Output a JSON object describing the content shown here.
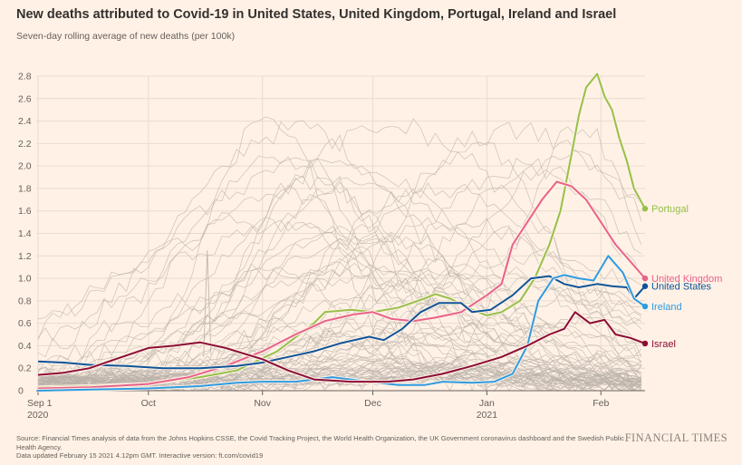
{
  "title": "New deaths attributed to Covid-19 in United States, United Kingdom, Portugal, Ireland and Israel",
  "subtitle": "Seven-day rolling average of new deaths (per 100k)",
  "footer": {
    "source": "Source: Financial Times analysis of data from the Johns Hopkins CSSE, the Covid Tracking Project, the World Health Organization, the UK Government coronavirus dashboard and the Swedish Public Health Agency.",
    "updated": "Data updated February 15 2021 4.12pm GMT. Interactive version: ft.com/covid19"
  },
  "brand": "FINANCIAL TIMES",
  "colors": {
    "background": "#fff1e5",
    "grid": "#e9dccf",
    "background_series": "#b9b1aa",
    "portugal": "#96c04a",
    "united_kingdom": "#e8628a",
    "united_states": "#0f5499",
    "ireland": "#2e9be0",
    "israel": "#8b0c35"
  },
  "chart_data": {
    "type": "line",
    "x_unit": "date",
    "xlim": [
      "2020-09-01",
      "2021-02-13"
    ],
    "ylim": [
      0,
      2.8
    ],
    "grid": true,
    "y_ticks": [
      {
        "value": 0,
        "label": "0"
      },
      {
        "value": 0.2,
        "label": "0.2"
      },
      {
        "value": 0.4,
        "label": "0.4"
      },
      {
        "value": 0.6,
        "label": "0.6"
      },
      {
        "value": 0.8,
        "label": "0.8"
      },
      {
        "value": 1.0,
        "label": "1.0"
      },
      {
        "value": 1.2,
        "label": "1.2"
      },
      {
        "value": 1.4,
        "label": "1.4"
      },
      {
        "value": 1.6,
        "label": "1.6"
      },
      {
        "value": 1.8,
        "label": "1.8"
      },
      {
        "value": 2.0,
        "label": "2.0"
      },
      {
        "value": 2.2,
        "label": "2.2"
      },
      {
        "value": 2.4,
        "label": "2.4"
      },
      {
        "value": 2.6,
        "label": "2.6"
      },
      {
        "value": 2.8,
        "label": "2.8"
      }
    ],
    "x_ticks": [
      {
        "date": "2020-09-01",
        "label": "Sep 1",
        "sublabel": "2020"
      },
      {
        "date": "2020-10-01",
        "label": "Oct",
        "sublabel": ""
      },
      {
        "date": "2020-11-01",
        "label": "Nov",
        "sublabel": ""
      },
      {
        "date": "2020-12-01",
        "label": "Dec",
        "sublabel": ""
      },
      {
        "date": "2021-01-01",
        "label": "Jan",
        "sublabel": "2021"
      },
      {
        "date": "2021-02-01",
        "label": "Feb",
        "sublabel": ""
      }
    ],
    "series": [
      {
        "name": "Portugal",
        "color_key": "portugal",
        "points": [
          [
            "2020-09-01",
            0.03
          ],
          [
            "2020-09-15",
            0.04
          ],
          [
            "2020-10-01",
            0.06
          ],
          [
            "2020-10-15",
            0.12
          ],
          [
            "2020-10-25",
            0.18
          ],
          [
            "2020-11-05",
            0.35
          ],
          [
            "2020-11-15",
            0.6
          ],
          [
            "2020-11-18",
            0.7
          ],
          [
            "2020-11-25",
            0.72
          ],
          [
            "2020-12-01",
            0.7
          ],
          [
            "2020-12-08",
            0.74
          ],
          [
            "2020-12-15",
            0.82
          ],
          [
            "2020-12-18",
            0.86
          ],
          [
            "2020-12-22",
            0.82
          ],
          [
            "2020-12-28",
            0.72
          ],
          [
            "2021-01-01",
            0.67
          ],
          [
            "2021-01-05",
            0.7
          ],
          [
            "2021-01-10",
            0.8
          ],
          [
            "2021-01-14",
            1.0
          ],
          [
            "2021-01-18",
            1.3
          ],
          [
            "2021-01-21",
            1.6
          ],
          [
            "2021-01-24",
            2.1
          ],
          [
            "2021-01-26",
            2.45
          ],
          [
            "2021-01-28",
            2.7
          ],
          [
            "2021-01-31",
            2.82
          ],
          [
            "2021-02-02",
            2.62
          ],
          [
            "2021-02-04",
            2.5
          ],
          [
            "2021-02-06",
            2.25
          ],
          [
            "2021-02-08",
            2.05
          ],
          [
            "2021-02-10",
            1.8
          ],
          [
            "2021-02-13",
            1.62
          ]
        ]
      },
      {
        "name": "United Kingdom",
        "color_key": "united_kingdom",
        "points": [
          [
            "2020-09-01",
            0.02
          ],
          [
            "2020-09-15",
            0.03
          ],
          [
            "2020-10-01",
            0.06
          ],
          [
            "2020-10-12",
            0.12
          ],
          [
            "2020-10-22",
            0.22
          ],
          [
            "2020-11-01",
            0.35
          ],
          [
            "2020-11-10",
            0.5
          ],
          [
            "2020-11-18",
            0.62
          ],
          [
            "2020-11-26",
            0.68
          ],
          [
            "2020-12-01",
            0.7
          ],
          [
            "2020-12-06",
            0.64
          ],
          [
            "2020-12-12",
            0.62
          ],
          [
            "2020-12-18",
            0.65
          ],
          [
            "2020-12-25",
            0.7
          ],
          [
            "2021-01-01",
            0.85
          ],
          [
            "2021-01-05",
            0.95
          ],
          [
            "2021-01-08",
            1.3
          ],
          [
            "2021-01-12",
            1.5
          ],
          [
            "2021-01-16",
            1.7
          ],
          [
            "2021-01-20",
            1.86
          ],
          [
            "2021-01-24",
            1.82
          ],
          [
            "2021-01-28",
            1.7
          ],
          [
            "2021-02-01",
            1.5
          ],
          [
            "2021-02-05",
            1.3
          ],
          [
            "2021-02-09",
            1.15
          ],
          [
            "2021-02-13",
            1.0
          ]
        ]
      },
      {
        "name": "United States",
        "color_key": "united_states",
        "points": [
          [
            "2020-09-01",
            0.26
          ],
          [
            "2020-09-08",
            0.25
          ],
          [
            "2020-09-15",
            0.23
          ],
          [
            "2020-09-25",
            0.22
          ],
          [
            "2020-10-05",
            0.2
          ],
          [
            "2020-10-15",
            0.2
          ],
          [
            "2020-10-25",
            0.22
          ],
          [
            "2020-11-01",
            0.25
          ],
          [
            "2020-11-08",
            0.3
          ],
          [
            "2020-11-15",
            0.35
          ],
          [
            "2020-11-22",
            0.42
          ],
          [
            "2020-11-30",
            0.48
          ],
          [
            "2020-12-04",
            0.45
          ],
          [
            "2020-12-09",
            0.55
          ],
          [
            "2020-12-14",
            0.7
          ],
          [
            "2020-12-19",
            0.78
          ],
          [
            "2020-12-25",
            0.78
          ],
          [
            "2020-12-28",
            0.7
          ],
          [
            "2021-01-02",
            0.72
          ],
          [
            "2021-01-08",
            0.85
          ],
          [
            "2021-01-13",
            1.0
          ],
          [
            "2021-01-18",
            1.02
          ],
          [
            "2021-01-22",
            0.95
          ],
          [
            "2021-01-26",
            0.92
          ],
          [
            "2021-01-31",
            0.95
          ],
          [
            "2021-02-04",
            0.93
          ],
          [
            "2021-02-08",
            0.92
          ],
          [
            "2021-02-10",
            0.82
          ],
          [
            "2021-02-13",
            0.93
          ]
        ]
      },
      {
        "name": "Ireland",
        "color_key": "ireland",
        "points": [
          [
            "2020-09-01",
            0.0
          ],
          [
            "2020-09-15",
            0.01
          ],
          [
            "2020-10-01",
            0.02
          ],
          [
            "2020-10-15",
            0.04
          ],
          [
            "2020-10-25",
            0.07
          ],
          [
            "2020-11-01",
            0.08
          ],
          [
            "2020-11-10",
            0.08
          ],
          [
            "2020-11-20",
            0.12
          ],
          [
            "2020-11-30",
            0.08
          ],
          [
            "2020-12-08",
            0.05
          ],
          [
            "2020-12-15",
            0.05
          ],
          [
            "2020-12-20",
            0.08
          ],
          [
            "2020-12-28",
            0.07
          ],
          [
            "2021-01-03",
            0.08
          ],
          [
            "2021-01-08",
            0.15
          ],
          [
            "2021-01-12",
            0.4
          ],
          [
            "2021-01-15",
            0.8
          ],
          [
            "2021-01-19",
            1.0
          ],
          [
            "2021-01-22",
            1.03
          ],
          [
            "2021-01-26",
            1.0
          ],
          [
            "2021-01-30",
            0.98
          ],
          [
            "2021-02-03",
            1.2
          ],
          [
            "2021-02-07",
            1.05
          ],
          [
            "2021-02-10",
            0.82
          ],
          [
            "2021-02-13",
            0.75
          ]
        ]
      },
      {
        "name": "Israel",
        "color_key": "israel",
        "points": [
          [
            "2020-09-01",
            0.14
          ],
          [
            "2020-09-08",
            0.16
          ],
          [
            "2020-09-15",
            0.2
          ],
          [
            "2020-09-22",
            0.28
          ],
          [
            "2020-10-01",
            0.38
          ],
          [
            "2020-10-08",
            0.4
          ],
          [
            "2020-10-15",
            0.43
          ],
          [
            "2020-10-22",
            0.38
          ],
          [
            "2020-11-01",
            0.28
          ],
          [
            "2020-11-08",
            0.18
          ],
          [
            "2020-11-15",
            0.1
          ],
          [
            "2020-11-25",
            0.08
          ],
          [
            "2020-12-05",
            0.08
          ],
          [
            "2020-12-12",
            0.1
          ],
          [
            "2020-12-20",
            0.15
          ],
          [
            "2020-12-28",
            0.22
          ],
          [
            "2021-01-05",
            0.3
          ],
          [
            "2021-01-12",
            0.4
          ],
          [
            "2021-01-18",
            0.5
          ],
          [
            "2021-01-22",
            0.55
          ],
          [
            "2021-01-25",
            0.7
          ],
          [
            "2021-01-29",
            0.6
          ],
          [
            "2021-02-02",
            0.63
          ],
          [
            "2021-02-05",
            0.5
          ],
          [
            "2021-02-09",
            0.47
          ],
          [
            "2021-02-13",
            0.42
          ]
        ]
      }
    ]
  }
}
